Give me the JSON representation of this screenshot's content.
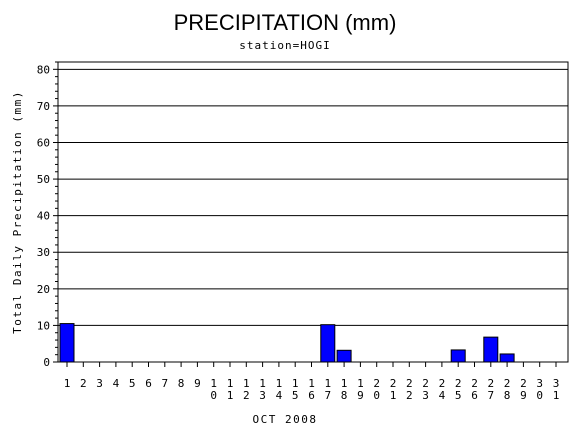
{
  "chart_data": {
    "type": "bar",
    "title": "PRECIPITATION (mm)",
    "subtitle": "station=HOGI",
    "xlabel": "OCT 2008",
    "ylabel": "Total Daily Precipitation (mm)",
    "ylim": [
      0,
      82
    ],
    "yticks": [
      0,
      10,
      20,
      30,
      40,
      50,
      60,
      70,
      80
    ],
    "grid": true,
    "bar_color": "#0000ff",
    "categories": [
      "1",
      "2",
      "3",
      "4",
      "5",
      "6",
      "7",
      "8",
      "9",
      "10",
      "11",
      "12",
      "13",
      "14",
      "15",
      "16",
      "17",
      "18",
      "19",
      "20",
      "21",
      "22",
      "23",
      "24",
      "25",
      "26",
      "27",
      "28",
      "29",
      "30",
      "31"
    ],
    "values": [
      10.5,
      0,
      0,
      0,
      0,
      0,
      0,
      0,
      0,
      0,
      0,
      0,
      0,
      0,
      0,
      0,
      10.2,
      3.2,
      0,
      0,
      0,
      0,
      0,
      0,
      3.3,
      0,
      6.8,
      2.2,
      0,
      0,
      0
    ]
  }
}
